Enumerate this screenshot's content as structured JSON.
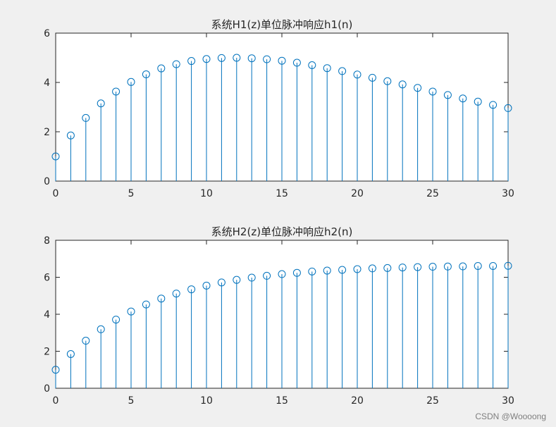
{
  "watermark": "CSDN @Woooong",
  "chart_data": [
    {
      "type": "stem",
      "title": "系统H1(z)单位脉冲响应h1(n)",
      "xlabel": "",
      "ylabel": "",
      "xlim": [
        0,
        30
      ],
      "ylim": [
        0,
        6
      ],
      "xticks": [
        0,
        5,
        10,
        15,
        20,
        25,
        30
      ],
      "yticks": [
        0,
        2,
        4,
        6
      ],
      "grid": false,
      "color": "#0072bd",
      "x": [
        0,
        1,
        2,
        3,
        4,
        5,
        6,
        7,
        8,
        9,
        10,
        11,
        12,
        13,
        14,
        15,
        16,
        17,
        18,
        19,
        20,
        21,
        22,
        23,
        24,
        25,
        26,
        27,
        28,
        29,
        30
      ],
      "values": [
        1.0,
        1.85,
        2.56,
        3.15,
        3.63,
        4.02,
        4.33,
        4.57,
        4.74,
        4.87,
        4.95,
        4.99,
        5.0,
        4.98,
        4.94,
        4.88,
        4.8,
        4.7,
        4.58,
        4.46,
        4.32,
        4.19,
        4.05,
        3.92,
        3.78,
        3.63,
        3.49,
        3.35,
        3.22,
        3.09,
        2.96
      ]
    },
    {
      "type": "stem",
      "title": "系统H2(z)单位脉冲响应h2(n)",
      "xlabel": "",
      "ylabel": "",
      "xlim": [
        0,
        30
      ],
      "ylim": [
        0,
        8
      ],
      "xticks": [
        0,
        5,
        10,
        15,
        20,
        25,
        30
      ],
      "yticks": [
        0,
        2,
        4,
        6,
        8
      ],
      "grid": false,
      "color": "#0072bd",
      "x": [
        0,
        1,
        2,
        3,
        4,
        5,
        6,
        7,
        8,
        9,
        10,
        11,
        12,
        13,
        14,
        15,
        16,
        17,
        18,
        19,
        20,
        21,
        22,
        23,
        24,
        25,
        26,
        27,
        28,
        29,
        30
      ],
      "values": [
        1.0,
        1.85,
        2.57,
        3.19,
        3.71,
        4.15,
        4.53,
        4.85,
        5.12,
        5.35,
        5.55,
        5.72,
        5.86,
        5.98,
        6.08,
        6.17,
        6.24,
        6.31,
        6.36,
        6.4,
        6.44,
        6.48,
        6.5,
        6.53,
        6.55,
        6.57,
        6.58,
        6.59,
        6.61,
        6.61,
        6.62
      ]
    }
  ]
}
